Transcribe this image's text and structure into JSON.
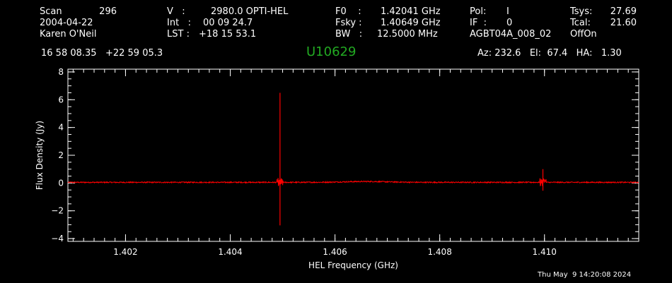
{
  "header": {
    "col1": [
      "Scan",
      "2004-04-22",
      "Karen O'Neil"
    ],
    "scan_number": "296",
    "col2_labels": [
      "V   :",
      "Int   :",
      "LST :"
    ],
    "col2_values": [
      "2980.0 OPTI-HEL",
      "00 09 24.7",
      "+18 15 53.1"
    ],
    "col3_labels": [
      "F0    :",
      "Fsky :",
      "BW   :"
    ],
    "col3_values": [
      "1.42041 GHz",
      "1.40649 GHz",
      "12.5000 MHz"
    ],
    "col4_labels": [
      "Pol:",
      "IF  :",
      "AGBT04A_008_02"
    ],
    "col4_values": [
      "I",
      "0",
      ""
    ],
    "col5_labels": [
      "Tsys:",
      "Tcal:",
      "OffOn"
    ],
    "col5_values": [
      "27.69",
      "21.60",
      ""
    ],
    "coords": "16 58 08.35   +22 59 05.3",
    "source": "U10629",
    "az_el_ha": "Az: 232.6   El:  67.4   HA:   1.30"
  },
  "footer": {
    "timestamp": "Thu May  9 14:20:08 2024"
  },
  "chart_data": {
    "type": "line",
    "xlabel": "HEL Frequency (GHz)",
    "ylabel": "Flux Density (Jy)",
    "xlim": [
      1.4009,
      1.4118
    ],
    "ylim": [
      -4.2,
      8.2
    ],
    "x_ticks": [
      1.402,
      1.404,
      1.406,
      1.408,
      1.41
    ],
    "x_tick_labels": [
      "1.402",
      "1.404",
      "1.406",
      "1.408",
      "1.410"
    ],
    "y_ticks": [
      -4,
      -2,
      0,
      2,
      4,
      6,
      8
    ],
    "y_tick_labels": [
      "−4",
      "−2",
      "0",
      "2",
      "4",
      "6",
      "8"
    ],
    "grid": false,
    "series": [
      {
        "color": "#ff0000",
        "baseline": 0.05,
        "noise_amplitude": 0.08,
        "spikes": [
          {
            "x": 1.40495,
            "y_max": 6.5,
            "y_min": -3.05
          },
          {
            "x": 1.40997,
            "y_max": 1.0,
            "y_min": -0.55
          }
        ]
      }
    ],
    "colors": {
      "axes": "#ffffff",
      "background": "#000000",
      "trace": "#ff0000",
      "source_title": "#22aa22"
    }
  }
}
